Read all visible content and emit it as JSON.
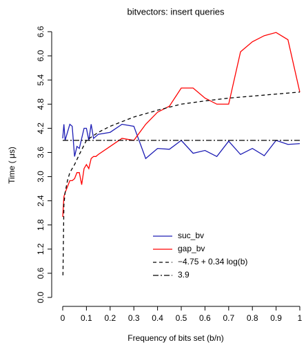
{
  "chart_data": {
    "type": "line",
    "title": "bitvectors: insert queries",
    "xlabel": "Frequency of bits set (b/n)",
    "ylabel": "Time ( μs)",
    "xlim": [
      0,
      1
    ],
    "ylim": [
      0,
      6.6
    ],
    "xticks": [
      0,
      0.1,
      0.2,
      0.3,
      0.4,
      0.5,
      0.6,
      0.7,
      0.8,
      0.9,
      1
    ],
    "yticks": [
      {
        "value": 0,
        "label": "0.0"
      },
      0.6,
      1.2,
      1.8,
      2.4,
      {
        "value": 3,
        "label": "3.0"
      },
      3.6,
      4.2,
      4.8,
      5.4,
      {
        "value": 6,
        "label": "6.0"
      },
      6.6
    ],
    "series": [
      {
        "name": "suc_bv",
        "color": "#1c1cb4",
        "dash": "",
        "x": [
          0,
          0.005,
          0.01,
          0.02,
          0.03,
          0.04,
          0.05,
          0.06,
          0.07,
          0.08,
          0.09,
          0.1,
          0.11,
          0.12,
          0.13,
          0.14,
          0.15,
          0.2,
          0.25,
          0.3,
          0.35,
          0.4,
          0.45,
          0.5,
          0.55,
          0.6,
          0.65,
          0.7,
          0.75,
          0.8,
          0.85,
          0.9,
          0.95,
          1
        ],
        "values": [
          3.95,
          4.3,
          3.9,
          4.1,
          4.3,
          4.25,
          3.5,
          3.75,
          3.7,
          3.95,
          4.2,
          4.2,
          3.9,
          4.3,
          3.95,
          4.0,
          4.05,
          4.1,
          4.3,
          4.25,
          3.45,
          3.7,
          3.68,
          3.9,
          3.58,
          3.65,
          3.5,
          3.88,
          3.55,
          3.7,
          3.52,
          3.9,
          3.8,
          3.82
        ]
      },
      {
        "name": "gap_bv",
        "color": "#ff0000",
        "dash": "",
        "x": [
          0,
          0.005,
          0.01,
          0.02,
          0.03,
          0.04,
          0.05,
          0.06,
          0.07,
          0.08,
          0.09,
          0.1,
          0.11,
          0.12,
          0.13,
          0.14,
          0.15,
          0.2,
          0.25,
          0.3,
          0.35,
          0.4,
          0.45,
          0.5,
          0.55,
          0.6,
          0.65,
          0.7,
          0.75,
          0.8,
          0.85,
          0.9,
          0.95,
          1
        ],
        "values": [
          2.0,
          2.5,
          2.6,
          2.75,
          2.9,
          2.9,
          2.95,
          3.1,
          3.1,
          2.8,
          3.2,
          3.3,
          3.2,
          3.45,
          3.5,
          3.5,
          3.55,
          3.75,
          3.95,
          3.9,
          4.3,
          4.6,
          4.75,
          5.2,
          5.2,
          4.95,
          4.8,
          4.8,
          6.1,
          6.35,
          6.5,
          6.58,
          6.4,
          5.1
        ]
      },
      {
        "name": "−4.75  +  0.34  log(b)",
        "color": "#000000",
        "dash": "5,4",
        "x": [
          0.001,
          0.005,
          0.01,
          0.02,
          0.03,
          0.05,
          0.07,
          0.1,
          0.15,
          0.2,
          0.3,
          0.4,
          0.5,
          0.6,
          0.7,
          0.8,
          0.9,
          1
        ],
        "values": [
          0.55,
          2.3,
          2.6,
          2.9,
          3.1,
          3.3,
          3.55,
          3.9,
          4.1,
          4.25,
          4.48,
          4.65,
          4.8,
          4.88,
          4.95,
          5.0,
          5.05,
          5.1
        ]
      },
      {
        "name": "3.9",
        "color": "#000000",
        "dash": "8,3,2,3",
        "x": [
          0,
          1
        ],
        "values": [
          3.9,
          3.9
        ]
      }
    ]
  }
}
